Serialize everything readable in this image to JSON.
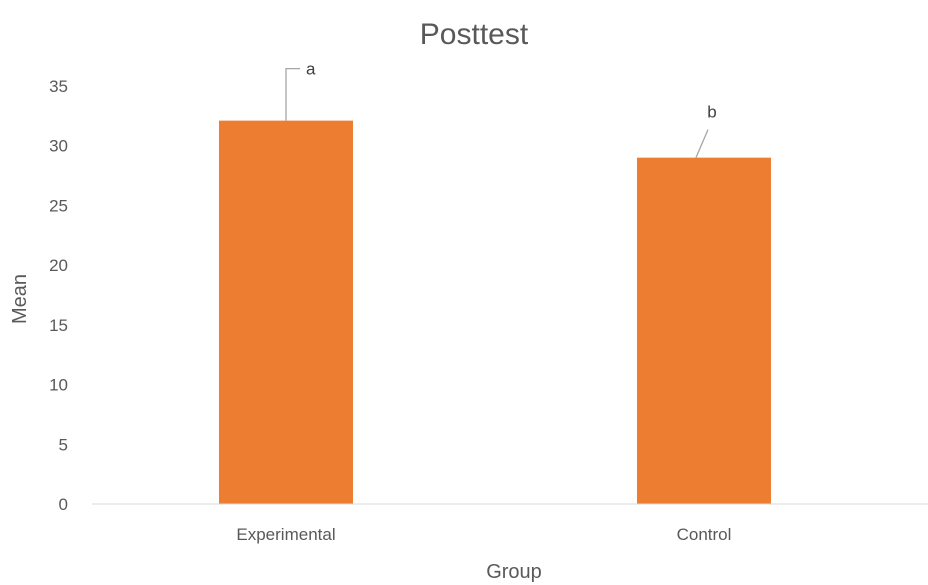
{
  "chart_data": {
    "type": "bar",
    "title": "Posttest",
    "xlabel": "Group",
    "ylabel": "Mean",
    "categories": [
      "Experimental",
      "Control"
    ],
    "values": [
      32.1,
      29.0
    ],
    "data_labels": [
      "a",
      "b"
    ],
    "ylim": [
      0,
      35
    ],
    "yticks": [
      "0",
      "5",
      "10",
      "15",
      "20",
      "25",
      "30",
      "35"
    ],
    "grid": false,
    "legend": "none",
    "bar_color": "#ED7D31"
  }
}
